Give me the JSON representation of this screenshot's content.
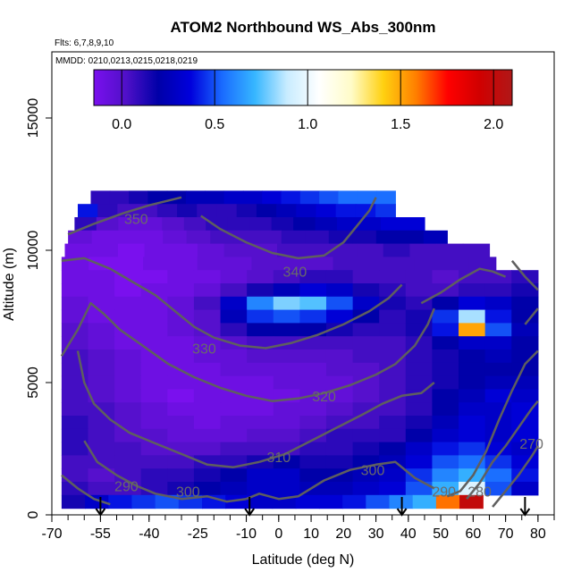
{
  "chart_data": {
    "type": "heatmap",
    "title": "ATOM2 Northbound WS_Abs_300nm",
    "notes": [
      "Flts: 6,7,8,9,10",
      "MMDD: 0210,0213,0215,0218,0219"
    ],
    "xlabel": "Latitude (deg N)",
    "ylabel": "Altitude (m)",
    "xlim": [
      -70,
      85
    ],
    "ylim": [
      0,
      17500
    ],
    "xticks": [
      -70,
      -55,
      -40,
      -25,
      -10,
      0,
      10,
      20,
      30,
      40,
      50,
      60,
      70,
      80
    ],
    "yticks": [
      0,
      5000,
      10000,
      15000
    ],
    "colorbar": {
      "range": [
        -0.15,
        2.1
      ],
      "ticks": [
        0.0,
        0.5,
        1.0,
        1.5,
        2.0
      ],
      "tick_labels": [
        "0.0",
        "0.5",
        "1.0",
        "1.5",
        "2.0"
      ],
      "palette": [
        "#7a10ee",
        "#5010c8",
        "#0000a8",
        "#0000dc",
        "#1a6cff",
        "#36b6ff",
        "#c8ecff",
        "#ffffff",
        "#fffcc8",
        "#ffd010",
        "#ff8000",
        "#ff0000",
        "#d00000",
        "#b01818"
      ]
    },
    "field_rows": [
      {
        "alt": 12000,
        "xmin": -58,
        "xmax": 36,
        "values": [
          0.1,
          0.1,
          0.15,
          0.2,
          0.2,
          0.25,
          0.25,
          0.3,
          0.3,
          0.35,
          0.4,
          0.45,
          0.5,
          0.55,
          0.55,
          0.55
        ]
      },
      {
        "alt": 11500,
        "xmin": -62,
        "xmax": 36,
        "values": [
          0.4,
          0.1,
          0.05,
          0.05,
          0.1,
          0.15,
          0.1,
          0.1,
          0.15,
          0.2,
          0.25,
          0.3,
          0.35,
          0.4,
          0.4,
          0.45
        ]
      },
      {
        "alt": 11000,
        "xmin": -63,
        "xmax": 45,
        "values": [
          0.1,
          0.0,
          -0.05,
          -0.05,
          0.0,
          0.05,
          0.1,
          0.1,
          0.1,
          0.15,
          0.2,
          0.25,
          0.3,
          0.3,
          0.35,
          0.35
        ]
      },
      {
        "alt": 10500,
        "xmin": -65,
        "xmax": 52,
        "values": [
          -0.05,
          -0.1,
          -0.1,
          -0.1,
          -0.05,
          0.0,
          0.05,
          0.05,
          0.05,
          0.1,
          0.1,
          0.15,
          0.15,
          0.2,
          0.2,
          0.25
        ]
      },
      {
        "alt": 10000,
        "xmin": -66,
        "xmax": 65,
        "values": [
          -0.1,
          -0.1,
          -0.15,
          -0.1,
          -0.1,
          -0.05,
          0.0,
          0.0,
          0.05,
          0.05,
          0.05,
          0.05,
          0.1,
          0.05,
          0.05,
          0.05
        ]
      },
      {
        "alt": 9500,
        "xmin": -67,
        "xmax": 67,
        "values": [
          -0.1,
          -0.15,
          -0.15,
          -0.1,
          -0.1,
          -0.05,
          -0.05,
          0.0,
          0.0,
          0.0,
          0.05,
          0.05,
          0.05,
          0.05,
          0.05,
          0.05
        ]
      },
      {
        "alt": 9000,
        "xmin": -67,
        "xmax": 80,
        "values": [
          -0.1,
          -0.1,
          -0.15,
          -0.15,
          -0.1,
          -0.1,
          -0.05,
          0.0,
          0.05,
          0.1,
          0.1,
          0.05,
          0.05,
          0.05,
          0.0,
          0.05,
          0.05,
          0.1
        ]
      },
      {
        "alt": 8500,
        "xmin": -67,
        "xmax": 80,
        "values": [
          -0.1,
          -0.1,
          -0.15,
          -0.1,
          -0.1,
          -0.05,
          0.05,
          0.15,
          0.25,
          0.35,
          0.3,
          0.15,
          0.1,
          0.05,
          0.05,
          0.1,
          0.1,
          0.15
        ]
      },
      {
        "alt": 8000,
        "xmin": -67,
        "xmax": 80,
        "values": [
          -0.05,
          -0.1,
          -0.1,
          -0.1,
          -0.05,
          0.05,
          0.3,
          0.6,
          0.8,
          0.75,
          0.5,
          0.3,
          0.15,
          0.1,
          0.2,
          0.35,
          0.3,
          0.2
        ]
      },
      {
        "alt": 7500,
        "xmin": -67,
        "xmax": 80,
        "values": [
          -0.05,
          -0.1,
          -0.1,
          -0.1,
          -0.05,
          0.0,
          0.25,
          0.45,
          0.5,
          0.45,
          0.35,
          0.2,
          0.1,
          0.15,
          0.45,
          0.85,
          0.4,
          0.2
        ]
      },
      {
        "alt": 7000,
        "xmin": -67,
        "xmax": 80,
        "values": [
          0.0,
          -0.05,
          -0.1,
          -0.1,
          -0.05,
          0.0,
          0.1,
          0.2,
          0.2,
          0.2,
          0.15,
          0.1,
          0.1,
          0.15,
          0.4,
          1.5,
          0.5,
          0.25
        ]
      },
      {
        "alt": 6500,
        "xmin": -67,
        "xmax": 80,
        "values": [
          0.0,
          -0.05,
          -0.1,
          -0.1,
          -0.1,
          -0.05,
          0.0,
          0.05,
          0.05,
          0.05,
          0.05,
          0.05,
          0.05,
          0.1,
          0.2,
          0.3,
          0.3,
          0.2
        ]
      },
      {
        "alt": 6000,
        "xmin": -67,
        "xmax": 80,
        "values": [
          0.05,
          0.0,
          -0.05,
          -0.1,
          -0.1,
          -0.05,
          -0.05,
          0.0,
          0.0,
          0.0,
          0.0,
          0.05,
          0.05,
          0.1,
          0.15,
          0.2,
          0.25,
          0.2
        ]
      },
      {
        "alt": 5500,
        "xmin": -67,
        "xmax": 80,
        "values": [
          0.05,
          0.0,
          -0.05,
          -0.1,
          -0.1,
          -0.1,
          -0.05,
          -0.05,
          -0.05,
          -0.05,
          0.0,
          0.0,
          0.05,
          0.1,
          0.15,
          0.2,
          0.2,
          0.2
        ]
      },
      {
        "alt": 5000,
        "xmin": -67,
        "xmax": 80,
        "values": [
          0.05,
          0.0,
          -0.05,
          -0.1,
          -0.1,
          -0.1,
          -0.1,
          -0.1,
          -0.05,
          -0.05,
          -0.05,
          0.0,
          0.05,
          0.1,
          0.15,
          0.2,
          0.25,
          0.25
        ]
      },
      {
        "alt": 4500,
        "xmin": -67,
        "xmax": 80,
        "values": [
          0.05,
          0.0,
          -0.05,
          -0.1,
          -0.15,
          -0.1,
          -0.1,
          -0.1,
          -0.1,
          -0.05,
          -0.05,
          0.0,
          0.05,
          0.1,
          0.2,
          0.25,
          0.35,
          0.3
        ]
      },
      {
        "alt": 4000,
        "xmin": -67,
        "xmax": 80,
        "values": [
          0.05,
          0.05,
          0.0,
          -0.05,
          -0.1,
          -0.1,
          -0.1,
          -0.1,
          -0.05,
          -0.05,
          0.0,
          0.05,
          0.05,
          0.1,
          0.2,
          0.3,
          0.3,
          0.35
        ]
      },
      {
        "alt": 3500,
        "xmin": -67,
        "xmax": 80,
        "values": [
          0.1,
          0.05,
          0.0,
          -0.05,
          -0.05,
          -0.1,
          -0.05,
          -0.05,
          -0.05,
          0.0,
          0.05,
          0.05,
          0.1,
          0.15,
          0.25,
          0.35,
          0.3,
          0.35
        ]
      },
      {
        "alt": 3000,
        "xmin": -67,
        "xmax": 80,
        "values": [
          0.1,
          0.05,
          0.0,
          0.0,
          -0.05,
          -0.05,
          -0.05,
          0.0,
          0.0,
          0.05,
          0.1,
          0.1,
          0.1,
          0.2,
          0.3,
          0.35,
          0.3,
          0.35
        ]
      },
      {
        "alt": 2500,
        "xmin": -67,
        "xmax": 80,
        "values": [
          0.1,
          0.05,
          0.05,
          0.0,
          0.0,
          0.0,
          0.05,
          0.05,
          0.05,
          0.1,
          0.1,
          0.15,
          0.2,
          0.3,
          0.4,
          0.45,
          0.35,
          0.3
        ]
      },
      {
        "alt": 2000,
        "xmin": -67,
        "xmax": 80,
        "values": [
          0.05,
          0.05,
          0.05,
          0.05,
          0.05,
          0.1,
          0.1,
          0.15,
          0.2,
          0.15,
          0.15,
          0.2,
          0.25,
          0.35,
          0.5,
          0.55,
          0.45,
          0.35
        ]
      },
      {
        "alt": 1500,
        "xmin": -67,
        "xmax": 80,
        "values": [
          0.05,
          0.0,
          0.05,
          0.1,
          0.1,
          0.15,
          0.2,
          0.3,
          0.3,
          0.2,
          0.2,
          0.25,
          0.3,
          0.45,
          0.6,
          0.7,
          0.55,
          0.4
        ]
      },
      {
        "alt": 1000,
        "xmin": -67,
        "xmax": 80,
        "values": [
          0.1,
          0.05,
          0.05,
          0.1,
          0.15,
          0.2,
          0.25,
          0.3,
          0.3,
          0.25,
          0.25,
          0.3,
          0.35,
          0.5,
          0.7,
          0.95,
          0.5,
          0.3
        ]
      },
      {
        "alt": 500,
        "xmin": -67,
        "xmax": 63,
        "values": [
          0.15,
          0.3,
          0.4,
          0.45,
          0.5,
          0.45,
          0.4,
          0.35,
          0.3,
          0.3,
          0.35,
          0.35,
          0.4,
          0.5,
          0.6,
          0.7,
          1.6,
          2.0
        ]
      }
    ],
    "contour_labels": [
      {
        "text": "350",
        "x": -44,
        "alt": 11200
      },
      {
        "text": "340",
        "x": 5,
        "alt": 9200
      },
      {
        "text": "330",
        "x": -23,
        "alt": 6300
      },
      {
        "text": "320",
        "x": 14,
        "alt": 4500
      },
      {
        "text": "310",
        "x": 0,
        "alt": 2200
      },
      {
        "text": "300",
        "x": -28,
        "alt": 900
      },
      {
        "text": "300",
        "x": 29,
        "alt": 1700
      },
      {
        "text": "290",
        "x": -47,
        "alt": 1100
      },
      {
        "text": "290",
        "x": 51,
        "alt": 900
      },
      {
        "text": "280",
        "x": 62,
        "alt": 900
      },
      {
        "text": "270",
        "x": 78,
        "alt": 2700
      }
    ],
    "contour_lines": [
      [
        [
          -65,
          10600
        ],
        [
          -57,
          11000
        ],
        [
          -48,
          11400
        ],
        [
          -40,
          11700
        ],
        [
          -30,
          12000
        ]
      ],
      [
        [
          -24,
          11300
        ],
        [
          -18,
          10800
        ],
        [
          -10,
          10300
        ],
        [
          -2,
          9900
        ],
        [
          6,
          9700
        ],
        [
          14,
          9800
        ],
        [
          20,
          10300
        ],
        [
          24,
          10900
        ],
        [
          28,
          11500
        ],
        [
          30,
          12000
        ]
      ],
      [
        [
          -67,
          9600
        ],
        [
          -60,
          9700
        ],
        [
          -52,
          9300
        ],
        [
          -45,
          8800
        ],
        [
          -38,
          8300
        ],
        [
          -32,
          7700
        ],
        [
          -26,
          7100
        ],
        [
          -20,
          6700
        ]
      ],
      [
        [
          -20,
          6700
        ],
        [
          -12,
          6400
        ],
        [
          -4,
          6300
        ],
        [
          4,
          6500
        ],
        [
          12,
          6800
        ],
        [
          20,
          7200
        ],
        [
          28,
          7700
        ],
        [
          34,
          8200
        ],
        [
          38,
          8700
        ]
      ],
      [
        [
          -67,
          6000
        ],
        [
          -62,
          7000
        ],
        [
          -58,
          8000
        ],
        [
          -54,
          7600
        ],
        [
          -49,
          7000
        ]
      ],
      [
        [
          -49,
          7000
        ],
        [
          -42,
          6400
        ],
        [
          -34,
          5700
        ],
        [
          -26,
          5200
        ],
        [
          -18,
          4800
        ],
        [
          -10,
          4500
        ],
        [
          -2,
          4300
        ],
        [
          6,
          4400
        ],
        [
          14,
          4600
        ]
      ],
      [
        [
          14,
          4600
        ],
        [
          22,
          4900
        ],
        [
          30,
          5300
        ],
        [
          36,
          5700
        ],
        [
          42,
          6400
        ],
        [
          46,
          7200
        ],
        [
          48,
          7800
        ]
      ],
      [
        [
          -62,
          6200
        ],
        [
          -60,
          5000
        ],
        [
          -57,
          4200
        ],
        [
          -52,
          3600
        ],
        [
          -46,
          3100
        ],
        [
          -38,
          2700
        ],
        [
          -30,
          2300
        ],
        [
          -22,
          1900
        ],
        [
          -14,
          1800
        ],
        [
          -6,
          2000
        ]
      ],
      [
        [
          -6,
          2000
        ],
        [
          2,
          2300
        ],
        [
          10,
          2800
        ],
        [
          18,
          3300
        ],
        [
          26,
          3800
        ],
        [
          32,
          4200
        ],
        [
          38,
          4500
        ],
        [
          44,
          4600
        ],
        [
          48,
          5000
        ]
      ],
      [
        [
          -60,
          2800
        ],
        [
          -56,
          2000
        ],
        [
          -50,
          1500
        ],
        [
          -44,
          1100
        ],
        [
          -38,
          800
        ],
        [
          -30,
          600
        ],
        [
          -22,
          700
        ],
        [
          -16,
          500
        ],
        [
          -10,
          600
        ]
      ],
      [
        [
          -10,
          600
        ],
        [
          -6,
          800
        ],
        [
          0,
          600
        ],
        [
          6,
          700
        ],
        [
          14,
          1300
        ],
        [
          22,
          1700
        ],
        [
          30,
          1900
        ],
        [
          36,
          2000
        ],
        [
          42,
          1400
        ],
        [
          48,
          1000
        ]
      ],
      [
        [
          -67,
          1500
        ],
        [
          -62,
          1000
        ],
        [
          -57,
          600
        ],
        [
          -52,
          400
        ]
      ],
      [
        [
          52,
          700
        ],
        [
          56,
          900
        ],
        [
          60,
          1500
        ],
        [
          64,
          2400
        ],
        [
          68,
          3600
        ],
        [
          72,
          4700
        ],
        [
          76,
          5700
        ],
        [
          80,
          6200
        ]
      ],
      [
        [
          58,
          600
        ],
        [
          62,
          1200
        ],
        [
          66,
          2000
        ],
        [
          70,
          2600
        ],
        [
          74,
          3300
        ],
        [
          78,
          4000
        ],
        [
          80,
          4300
        ]
      ],
      [
        [
          66,
          300
        ],
        [
          70,
          900
        ],
        [
          74,
          1500
        ],
        [
          78,
          2200
        ],
        [
          80,
          2600
        ]
      ],
      [
        [
          44,
          8000
        ],
        [
          50,
          8400
        ],
        [
          56,
          8900
        ],
        [
          62,
          9300
        ],
        [
          66,
          9200
        ],
        [
          70,
          9000
        ]
      ],
      [
        [
          72,
          9600
        ],
        [
          76,
          9000
        ],
        [
          80,
          8500
        ]
      ],
      [
        [
          76,
          7200
        ],
        [
          80,
          7800
        ]
      ]
    ],
    "flight_markers_lat": [
      -55,
      -9,
      38,
      76
    ],
    "grid": false
  }
}
